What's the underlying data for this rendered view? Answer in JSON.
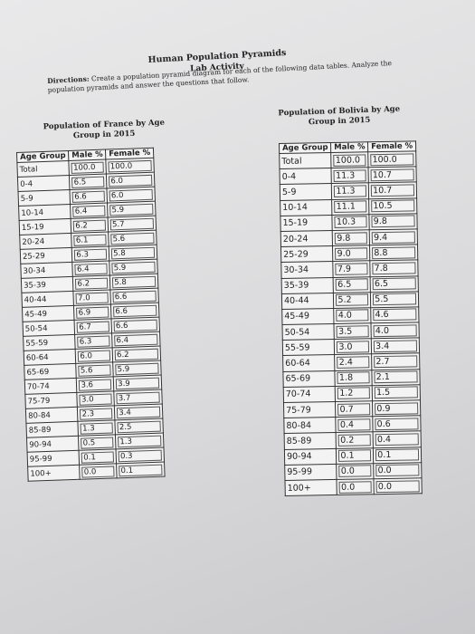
{
  "header": {
    "title": "Human Population Pyramids",
    "subtitle": "Lab Activity"
  },
  "directions": {
    "label": "Directions:",
    "text": "Create a population pyramid diagram for each of the following data tables. Analyze the population pyramids and answer the questions that follow."
  },
  "tables": [
    {
      "title": "Population of France by Age Group in 2015",
      "columns": [
        "Age Group",
        "Male %",
        "Female %"
      ],
      "rows": [
        [
          "Total",
          "100.0",
          "100.0"
        ],
        [
          "0-4",
          "6.5",
          "6.0"
        ],
        [
          "5-9",
          "6.6",
          "6.0"
        ],
        [
          "10-14",
          "6.4",
          "5.9"
        ],
        [
          "15-19",
          "6.2",
          "5.7"
        ],
        [
          "20-24",
          "6.1",
          "5.6"
        ],
        [
          "25-29",
          "6.3",
          "5.8"
        ],
        [
          "30-34",
          "6.4",
          "5.9"
        ],
        [
          "35-39",
          "6.2",
          "5.8"
        ],
        [
          "40-44",
          "7.0",
          "6.6"
        ],
        [
          "45-49",
          "6.9",
          "6.6"
        ],
        [
          "50-54",
          "6.7",
          "6.6"
        ],
        [
          "55-59",
          "6.3",
          "6.4"
        ],
        [
          "60-64",
          "6.0",
          "6.2"
        ],
        [
          "65-69",
          "5.6",
          "5.9"
        ],
        [
          "70-74",
          "3.6",
          "3.9"
        ],
        [
          "75-79",
          "3.0",
          "3.7"
        ],
        [
          "80-84",
          "2.3",
          "3.4"
        ],
        [
          "85-89",
          "1.3",
          "2.5"
        ],
        [
          "90-94",
          "0.5",
          "1.3"
        ],
        [
          "95-99",
          "0.1",
          "0.3"
        ],
        [
          "100+",
          "0.0",
          "0.1"
        ]
      ]
    },
    {
      "title": "Population of Bolivia by Age Group in 2015",
      "columns": [
        "Age Group",
        "Male %",
        "Female %"
      ],
      "rows": [
        [
          "Total",
          "100.0",
          "100.0"
        ],
        [
          "0-4",
          "11.3",
          "10.7"
        ],
        [
          "5-9",
          "11.3",
          "10.7"
        ],
        [
          "10-14",
          "11.1",
          "10.5"
        ],
        [
          "15-19",
          "10.3",
          "9.8"
        ],
        [
          "20-24",
          "9.8",
          "9.4"
        ],
        [
          "25-29",
          "9.0",
          "8.8"
        ],
        [
          "30-34",
          "7.9",
          "7.8"
        ],
        [
          "35-39",
          "6.5",
          "6.5"
        ],
        [
          "40-44",
          "5.2",
          "5.5"
        ],
        [
          "45-49",
          "4.0",
          "4.6"
        ],
        [
          "50-54",
          "3.5",
          "4.0"
        ],
        [
          "55-59",
          "3.0",
          "3.4"
        ],
        [
          "60-64",
          "2.4",
          "2.7"
        ],
        [
          "65-69",
          "1.8",
          "2.1"
        ],
        [
          "70-74",
          "1.2",
          "1.5"
        ],
        [
          "75-79",
          "0.7",
          "0.9"
        ],
        [
          "80-84",
          "0.4",
          "0.6"
        ],
        [
          "85-89",
          "0.2",
          "0.4"
        ],
        [
          "90-94",
          "0.1",
          "0.1"
        ],
        [
          "95-99",
          "0.0",
          "0.0"
        ],
        [
          "100+",
          "0.0",
          "0.0"
        ]
      ]
    }
  ]
}
